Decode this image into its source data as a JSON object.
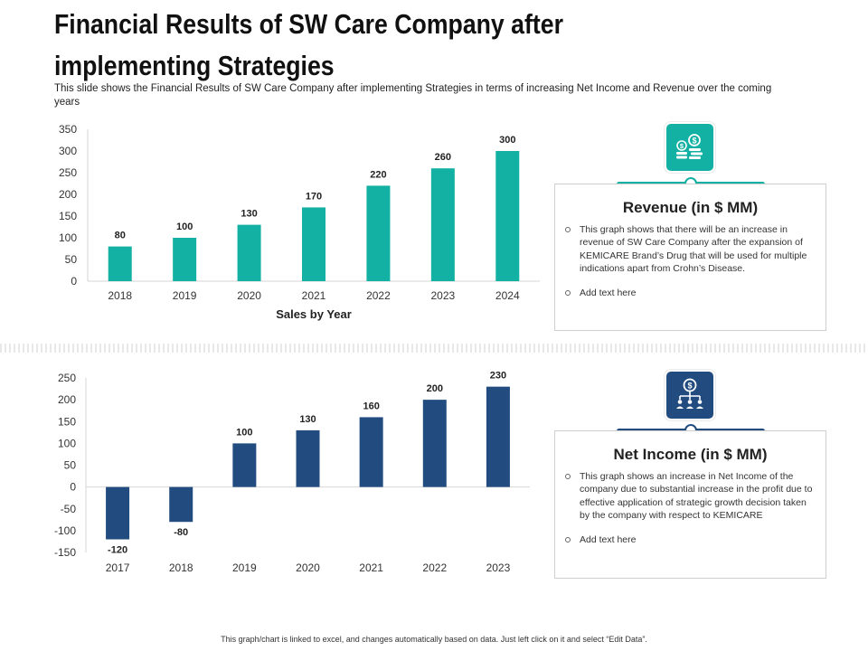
{
  "title": "Financial Results of SW Care Company after implementing Strategies",
  "subtitle": "This slide shows the Financial Results of SW Care Company after implementing Strategies in terms of increasing Net Income and Revenue over the coming years",
  "colors": {
    "revenue": "#12b1a3",
    "net_income": "#224c80"
  },
  "revenue_card": {
    "icon": "money-coins-icon",
    "title": "Revenue (in $ MM)",
    "bullets": [
      "This graph shows that there will be an increase in revenue of SW Care Company after the expansion of KEMICARE Brand’s Drug that will be used for multiple indications apart from Crohn’s Disease.",
      "Add text here"
    ]
  },
  "net_income_card": {
    "icon": "dollar-hierarchy-icon",
    "title": "Net Income (in $ MM)",
    "bullets": [
      "This graph shows an increase in Net Income of the company due to substantial increase in the profit due to effective application of strategic growth decision taken by the company with respect to KEMICARE",
      "Add text here"
    ]
  },
  "footer": "This graph/chart is linked to excel, and changes automatically based on data. Just left click on it and select “Edit Data”.",
  "chart_data": [
    {
      "type": "bar",
      "categories": [
        "2018",
        "2019",
        "2020",
        "2021",
        "2022",
        "2023",
        "2024"
      ],
      "values": [
        80,
        100,
        130,
        170,
        220,
        260,
        300
      ],
      "xlabel": "Sales by Year",
      "ylabel": "",
      "ylim": [
        0,
        350
      ],
      "yticks": [
        0,
        50,
        100,
        150,
        200,
        250,
        300,
        350
      ],
      "grid": false,
      "data_labels": true
    },
    {
      "type": "bar",
      "categories": [
        "2017",
        "2018",
        "2019",
        "2020",
        "2021",
        "2022",
        "2023"
      ],
      "values": [
        -120,
        -80,
        100,
        130,
        160,
        200,
        230
      ],
      "xlabel": "",
      "ylabel": "",
      "ylim": [
        -150,
        250
      ],
      "yticks": [
        -150,
        -100,
        -50,
        0,
        50,
        100,
        150,
        200,
        250
      ],
      "grid": false,
      "data_labels": true
    }
  ]
}
